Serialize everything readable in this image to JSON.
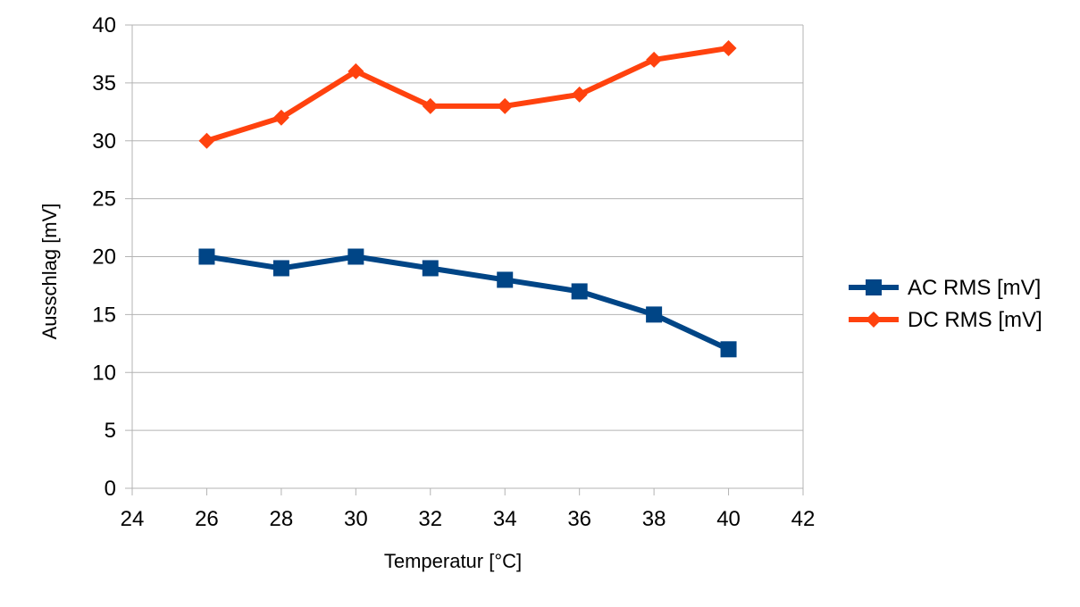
{
  "chart_data": {
    "type": "line",
    "title": "",
    "xlabel": "Temperatur [°C]",
    "ylabel": "Ausschlag [mV]",
    "xlim": [
      24,
      42
    ],
    "ylim": [
      0,
      40
    ],
    "xticks": [
      24,
      26,
      28,
      30,
      32,
      34,
      36,
      38,
      40,
      42
    ],
    "yticks": [
      0,
      5,
      10,
      15,
      20,
      25,
      30,
      35,
      40
    ],
    "grid": "horizontal",
    "legend_position": "right",
    "x": [
      26,
      28,
      30,
      32,
      34,
      36,
      38,
      40
    ],
    "series": [
      {
        "name": "AC RMS [mV]",
        "values": [
          20,
          19,
          20,
          19,
          18,
          17,
          15,
          12
        ],
        "color": "#004586",
        "marker": "square"
      },
      {
        "name": "DC RMS [mV]",
        "values": [
          30,
          32,
          36,
          33,
          33,
          34,
          37,
          38
        ],
        "color": "#ff420e",
        "marker": "diamond"
      }
    ]
  }
}
